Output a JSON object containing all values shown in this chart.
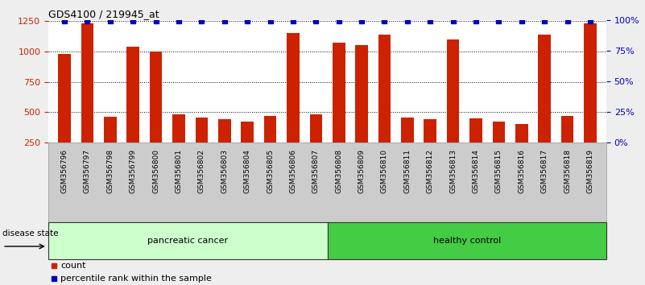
{
  "title": "GDS4100 / 219945_at",
  "samples": [
    "GSM356796",
    "GSM356797",
    "GSM356798",
    "GSM356799",
    "GSM356800",
    "GSM356801",
    "GSM356802",
    "GSM356803",
    "GSM356804",
    "GSM356805",
    "GSM356806",
    "GSM356807",
    "GSM356808",
    "GSM356809",
    "GSM356810",
    "GSM356811",
    "GSM356812",
    "GSM356813",
    "GSM356814",
    "GSM356815",
    "GSM356816",
    "GSM356817",
    "GSM356818",
    "GSM356819"
  ],
  "counts": [
    980,
    1230,
    460,
    1040,
    1000,
    480,
    455,
    440,
    425,
    470,
    1150,
    480,
    1070,
    1050,
    1140,
    455,
    445,
    1100,
    450,
    420,
    400,
    1140,
    470,
    1230
  ],
  "n_pancreatic": 12,
  "n_healthy": 12,
  "bar_color": "#CC2200",
  "percentile_color": "#0000BB",
  "ylim_left": [
    250,
    1260
  ],
  "yticks_left": [
    250,
    500,
    750,
    1000,
    1250
  ],
  "ylim_right": [
    0,
    100
  ],
  "yticks_right": [
    0,
    25,
    50,
    75,
    100
  ],
  "plot_bg": "#FFFFFF",
  "xtick_bg": "#CCCCCC",
  "group_color_pancreatic": "#CCFFCC",
  "group_color_healthy": "#44CC44",
  "group_border_color": "#333333",
  "label_count": "count",
  "label_percentile": "percentile rank within the sample",
  "disease_state_label": "disease state",
  "group_label_pancreatic": "pancreatic cancer",
  "group_label_healthy": "healthy control",
  "fig_bg": "#EEEEEE"
}
